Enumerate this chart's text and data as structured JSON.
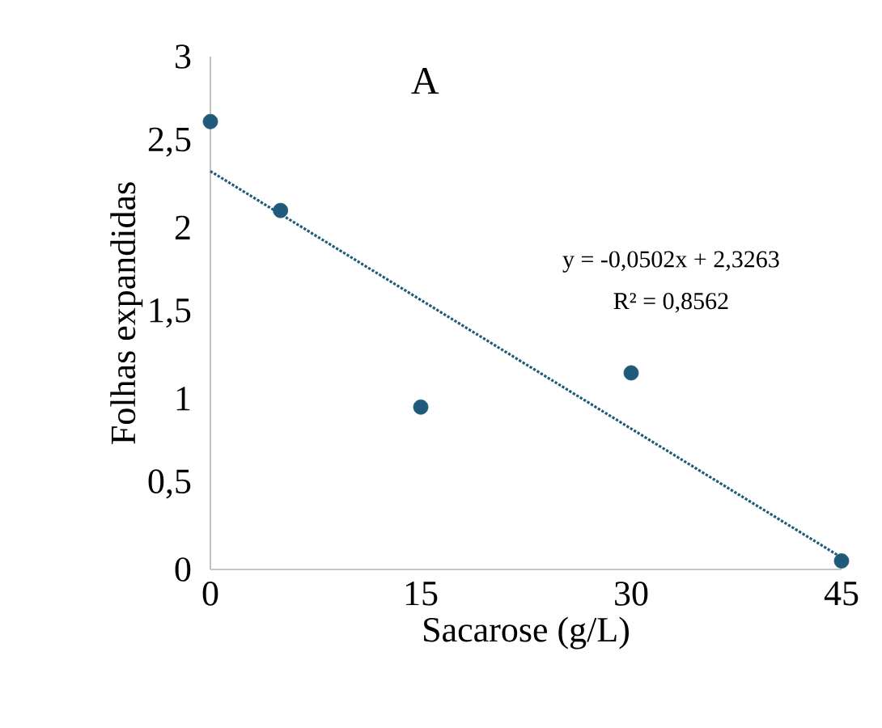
{
  "chart_data": {
    "type": "scatter",
    "title": "A",
    "xlabel": "Sacarose (g/L)",
    "ylabel": "Folhas expandidas",
    "x": [
      0,
      5,
      15,
      30,
      45
    ],
    "series": [
      {
        "color": "#1f5a7a",
        "values": [
          2.62,
          2.1,
          0.95,
          1.15,
          0.05
        ],
        "marker": "circle"
      },
      {
        "type": "line",
        "color": "#1f5a7a",
        "x": [
          0,
          45
        ],
        "values": [
          2.33,
          0.07
        ],
        "line_style": "dotted",
        "marker": "none"
      }
    ],
    "xlim": [
      0,
      45
    ],
    "xticks": [
      0,
      15,
      30,
      45
    ],
    "ylim": [
      0,
      3
    ],
    "yticks": [
      0,
      {
        "value": 0.5,
        "label": "0,5"
      },
      1,
      {
        "value": 1.5,
        "label": "1,5"
      },
      2,
      {
        "value": 2.5,
        "label": "2,5"
      },
      3
    ],
    "annotations": [
      "y = -0,0502x + 2,3263",
      "R² = 0,8562"
    ],
    "grid": false
  }
}
